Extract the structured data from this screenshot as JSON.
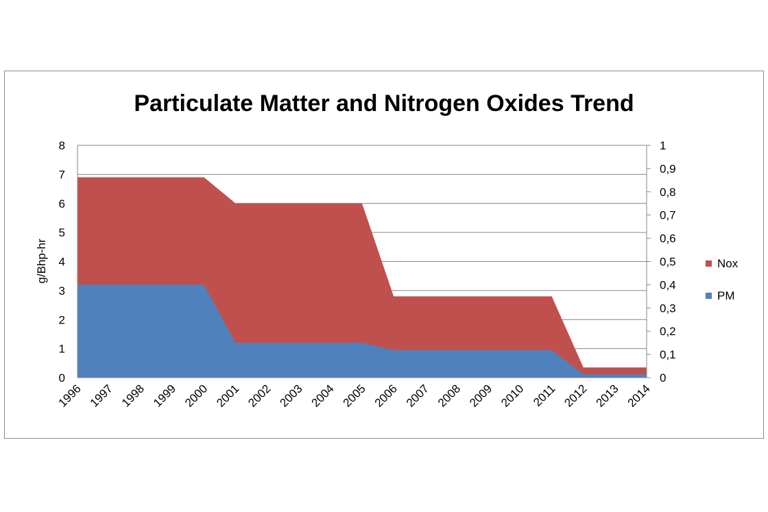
{
  "chart_data": {
    "type": "area",
    "title": "Particulate Matter and Nitrogen Oxides Trend",
    "ylabel": "g/Bhp-hr",
    "xlabel": "",
    "categories": [
      "1996",
      "1997",
      "1998",
      "1999",
      "2000",
      "2001",
      "2002",
      "2003",
      "2004",
      "2005",
      "2006",
      "2007",
      "2008",
      "2009",
      "2010",
      "2011",
      "2012",
      "2013",
      "2014"
    ],
    "ylim": [
      0,
      8
    ],
    "y_ticks": [
      "0",
      "1",
      "2",
      "3",
      "4",
      "5",
      "6",
      "7",
      "8"
    ],
    "y2lim": [
      0,
      1
    ],
    "y2_ticks": [
      "0",
      "0,1",
      "0,2",
      "0,3",
      "0,4",
      "0,5",
      "0,6",
      "0,7",
      "0,8",
      "0,9",
      "1"
    ],
    "grid": true,
    "legend_position": "right",
    "series": [
      {
        "name": "Nox",
        "color": "#c0504d",
        "values": [
          6.9,
          6.9,
          6.9,
          6.9,
          6.9,
          6.0,
          6.0,
          6.0,
          6.0,
          6.0,
          2.8,
          2.8,
          2.8,
          2.8,
          2.8,
          2.8,
          0.35,
          0.35,
          0.35
        ]
      },
      {
        "name": "PM",
        "color": "#4f81bd",
        "values": [
          3.2,
          3.2,
          3.2,
          3.2,
          3.2,
          1.2,
          1.2,
          1.2,
          1.2,
          1.2,
          0.95,
          0.95,
          0.95,
          0.95,
          0.95,
          0.95,
          0.12,
          0.12,
          0.12
        ]
      }
    ]
  }
}
